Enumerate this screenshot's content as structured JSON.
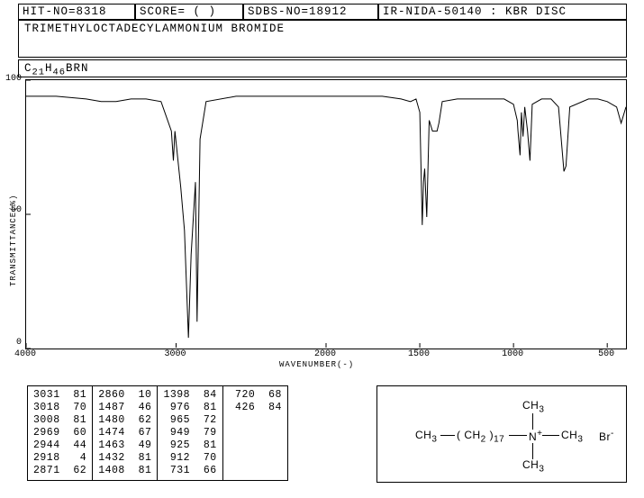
{
  "header": {
    "hit_no": "HIT-NO=8318",
    "score": "SCORE=  (   )",
    "sdbs_no": "SDBS-NO=18912",
    "method": "IR-NIDA-50140 : KBR DISC"
  },
  "compound_name": "TRIMETHYLOCTADECYLAMMONIUM BROMIDE",
  "formula_html": "C<sub>21</sub>H<sub>46</sub>BRN",
  "chart": {
    "type": "line",
    "xlabel": "WAVENUMBER(-)",
    "ylabel": "TRANSMITTANCE(%)",
    "x_min": 4000,
    "x_max": 400,
    "y_min": 0,
    "y_max": 100,
    "xticks": [
      4000,
      3000,
      2000,
      1500,
      1000,
      500
    ],
    "yticks": [
      0,
      50,
      100
    ],
    "line_color": "#000000",
    "background_color": "#ffffff",
    "series": [
      [
        4000,
        94
      ],
      [
        3800,
        94
      ],
      [
        3600,
        93
      ],
      [
        3500,
        92
      ],
      [
        3400,
        92
      ],
      [
        3300,
        93
      ],
      [
        3200,
        93
      ],
      [
        3100,
        92
      ],
      [
        3031,
        81
      ],
      [
        3018,
        70
      ],
      [
        3008,
        81
      ],
      [
        2969,
        60
      ],
      [
        2944,
        44
      ],
      [
        2918,
        4
      ],
      [
        2900,
        35
      ],
      [
        2871,
        62
      ],
      [
        2860,
        10
      ],
      [
        2840,
        78
      ],
      [
        2800,
        92
      ],
      [
        2600,
        94
      ],
      [
        2400,
        94
      ],
      [
        2200,
        94
      ],
      [
        2000,
        94
      ],
      [
        1900,
        94
      ],
      [
        1800,
        94
      ],
      [
        1700,
        94
      ],
      [
        1600,
        93
      ],
      [
        1550,
        92
      ],
      [
        1520,
        93
      ],
      [
        1500,
        88
      ],
      [
        1487,
        46
      ],
      [
        1480,
        62
      ],
      [
        1474,
        67
      ],
      [
        1463,
        49
      ],
      [
        1450,
        85
      ],
      [
        1432,
        81
      ],
      [
        1408,
        81
      ],
      [
        1398,
        84
      ],
      [
        1380,
        92
      ],
      [
        1300,
        93
      ],
      [
        1200,
        93
      ],
      [
        1100,
        93
      ],
      [
        1050,
        93
      ],
      [
        1000,
        91
      ],
      [
        980,
        85
      ],
      [
        976,
        81
      ],
      [
        965,
        72
      ],
      [
        958,
        88
      ],
      [
        949,
        79
      ],
      [
        940,
        90
      ],
      [
        925,
        81
      ],
      [
        912,
        70
      ],
      [
        900,
        91
      ],
      [
        850,
        93
      ],
      [
        800,
        93
      ],
      [
        760,
        90
      ],
      [
        731,
        66
      ],
      [
        720,
        68
      ],
      [
        700,
        90
      ],
      [
        600,
        93
      ],
      [
        550,
        93
      ],
      [
        500,
        92
      ],
      [
        450,
        90
      ],
      [
        426,
        84
      ],
      [
        400,
        90
      ]
    ]
  },
  "peak_table": {
    "columns": [
      [
        [
          3031,
          81
        ],
        [
          3018,
          70
        ],
        [
          3008,
          81
        ],
        [
          2969,
          60
        ],
        [
          2944,
          44
        ],
        [
          2918,
          4
        ],
        [
          2871,
          62
        ]
      ],
      [
        [
          2860,
          10
        ],
        [
          1487,
          46
        ],
        [
          1480,
          62
        ],
        [
          1474,
          67
        ],
        [
          1463,
          49
        ],
        [
          1432,
          81
        ],
        [
          1408,
          81
        ]
      ],
      [
        [
          1398,
          84
        ],
        [
          976,
          81
        ],
        [
          965,
          72
        ],
        [
          949,
          79
        ],
        [
          925,
          81
        ],
        [
          912,
          70
        ],
        [
          731,
          66
        ]
      ],
      [
        [
          720,
          68
        ],
        [
          426,
          84
        ]
      ]
    ]
  },
  "structure": {
    "left_group": "CH",
    "left_sub": "3",
    "chain": "( CH",
    "chain_sub": "2",
    "chain_close": " )",
    "chain_n": "17",
    "center": "N",
    "center_charge": "+",
    "top_group": "CH",
    "top_sub": "3",
    "right_group": "CH",
    "right_sub": "3",
    "bottom_group": "CH",
    "bottom_sub": "3",
    "counter_ion": "Br",
    "counter_charge": "-"
  },
  "colors": {
    "ink": "#000000",
    "bg": "#ffffff"
  }
}
